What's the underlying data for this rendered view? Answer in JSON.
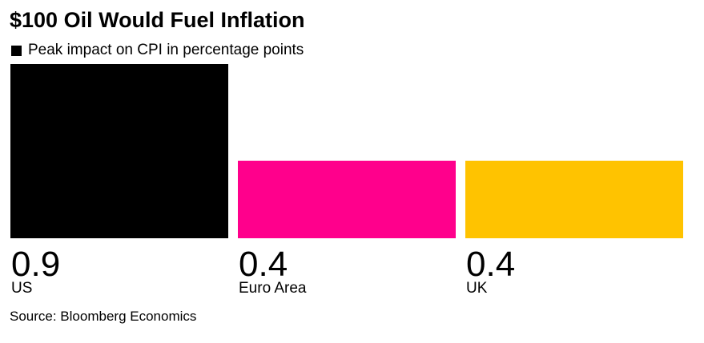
{
  "chart_data": {
    "type": "bar",
    "title": "$100 Oil Would Fuel Inflation",
    "legend": {
      "placement": "top-left",
      "entries": [
        {
          "label": "Peak impact on CPI in percentage points",
          "color": "#000000"
        }
      ]
    },
    "categories": [
      "US",
      "Euro Area",
      "UK"
    ],
    "series": [
      {
        "name": "Peak impact on CPI in percentage points",
        "values": [
          0.9,
          0.4,
          0.4
        ],
        "value_labels": [
          "0.9",
          "0.4",
          "0.4"
        ],
        "colors": [
          "#000000",
          "#ff008c",
          "#ffc300"
        ]
      }
    ],
    "ylim": [
      0,
      0.9
    ],
    "grid": false,
    "source": "Source: Bloomberg Economics"
  }
}
